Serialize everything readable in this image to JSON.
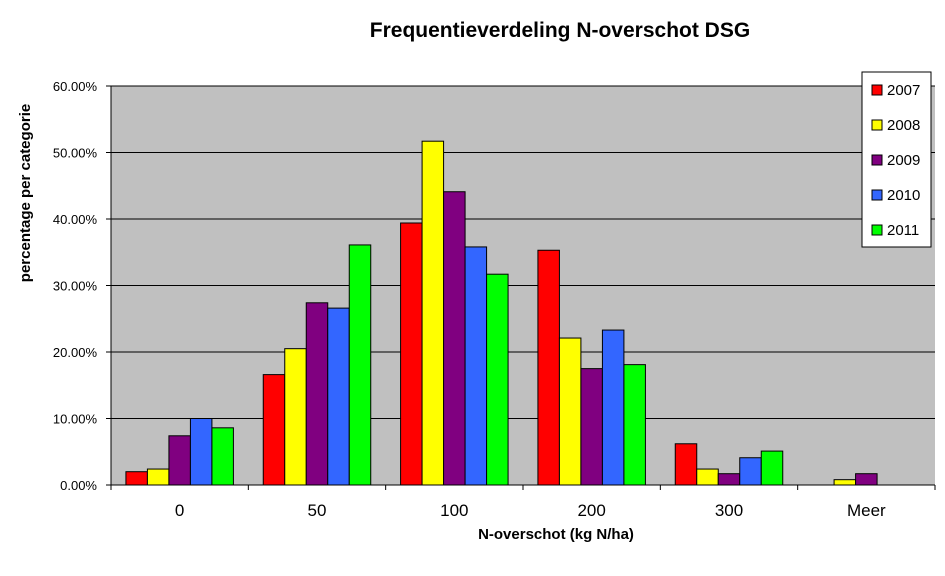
{
  "chart_data": {
    "type": "bar",
    "title": "Frequentieverdeling N-overschot DSG",
    "xlabel": "N-overschot (kg N/ha)",
    "ylabel": "percentage per categorie",
    "categories": [
      "0",
      "50",
      "100",
      "200",
      "300",
      "Meer"
    ],
    "ylim": [
      0,
      0.6
    ],
    "yticks": [
      "0.00%",
      "10.00%",
      "20.00%",
      "30.00%",
      "40.00%",
      "50.00%",
      "60.00%"
    ],
    "grid": true,
    "legend_position": "top-right",
    "plot_background": "#C0C0C0",
    "series": [
      {
        "name": "2007",
        "color": "#FF0000",
        "values": [
          0.02,
          0.166,
          0.394,
          0.353,
          0.062,
          0.0
        ]
      },
      {
        "name": "2008",
        "color": "#FFFF00",
        "values": [
          0.024,
          0.205,
          0.517,
          0.221,
          0.024,
          0.008
        ]
      },
      {
        "name": "2009",
        "color": "#800080",
        "values": [
          0.074,
          0.274,
          0.441,
          0.175,
          0.017,
          0.017
        ]
      },
      {
        "name": "2010",
        "color": "#3366FF",
        "values": [
          0.1,
          0.266,
          0.358,
          0.233,
          0.041,
          0.0
        ]
      },
      {
        "name": "2011",
        "color": "#00FF00",
        "values": [
          0.086,
          0.361,
          0.317,
          0.181,
          0.051,
          0.0
        ]
      }
    ]
  }
}
